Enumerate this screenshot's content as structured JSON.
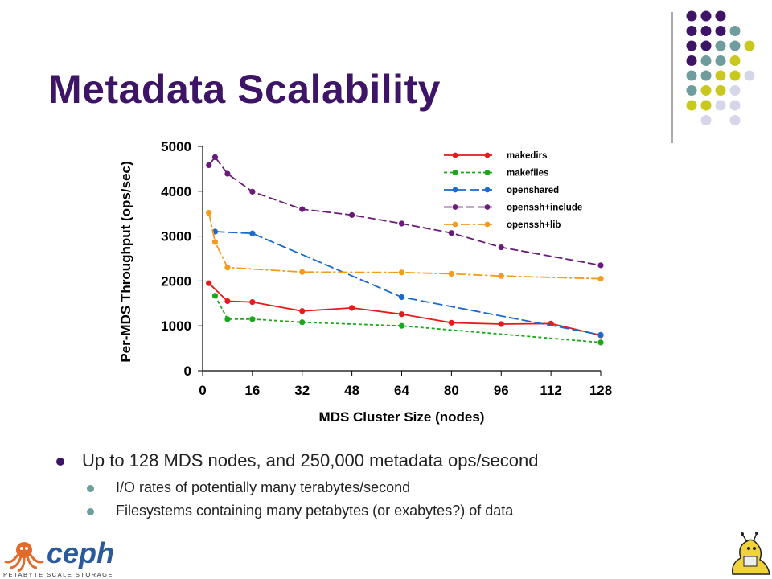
{
  "slide": {
    "title": "Metadata Scalability",
    "bullets": [
      "Up to 128 MDS nodes, and 250,000 metadata ops/second",
      "I/O rates of potentially many terabytes/second",
      "Filesystems containing many petabytes (or exabytes?) of data"
    ],
    "logo": {
      "name": "ceph",
      "tagline": "PETABYTE SCALE STORAGE"
    }
  },
  "colors": {
    "title": "#3d1466",
    "dot_purple": "#3d1466",
    "dot_teal": "#6f9c9c",
    "dot_yellow": "#c8c81e",
    "dot_lavender": "#d6d6ea"
  },
  "chart_data": {
    "type": "line",
    "xlabel": "MDS Cluster Size (nodes)",
    "ylabel": "Per-MDS Throughput (ops/sec)",
    "xlim": [
      0,
      128
    ],
    "ylim": [
      0,
      5000
    ],
    "xticks": [
      0,
      16,
      32,
      48,
      64,
      80,
      96,
      112,
      128
    ],
    "yticks": [
      0,
      1000,
      2000,
      3000,
      4000,
      5000
    ],
    "legend_position": "top-right",
    "series": [
      {
        "name": "makedirs",
        "color": "#e31b1b",
        "dash": "solid",
        "x": [
          2,
          4,
          8,
          16,
          32,
          48,
          64,
          80,
          96,
          112,
          128
        ],
        "y": [
          1950,
          null,
          1550,
          1530,
          1330,
          1400,
          1260,
          1070,
          1040,
          1050,
          790
        ]
      },
      {
        "name": "makefiles",
        "color": "#1aa81a",
        "dash": "4,3",
        "x": [
          4,
          8,
          16,
          32,
          64,
          128
        ],
        "y": [
          1670,
          1150,
          1150,
          1080,
          1000,
          630
        ]
      },
      {
        "name": "openshared",
        "color": "#1a6acc",
        "dash": "12,4",
        "x": [
          4,
          16,
          64,
          128
        ],
        "y": [
          3100,
          3060,
          1640,
          800
        ]
      },
      {
        "name": "openssh+include",
        "color": "#6a1a7a",
        "dash": "10,4",
        "x": [
          2,
          4,
          8,
          16,
          32,
          48,
          64,
          80,
          96,
          128
        ],
        "y": [
          4580,
          4760,
          4390,
          3990,
          3600,
          3470,
          3280,
          3070,
          2750,
          2350
        ]
      },
      {
        "name": "openssh+lib",
        "color": "#f59a1a",
        "dash": "12,3,3,3",
        "x": [
          2,
          4,
          8,
          32,
          64,
          80,
          96,
          128
        ],
        "y": [
          3520,
          2870,
          2300,
          2200,
          2190,
          2160,
          2110,
          2050
        ]
      }
    ]
  }
}
